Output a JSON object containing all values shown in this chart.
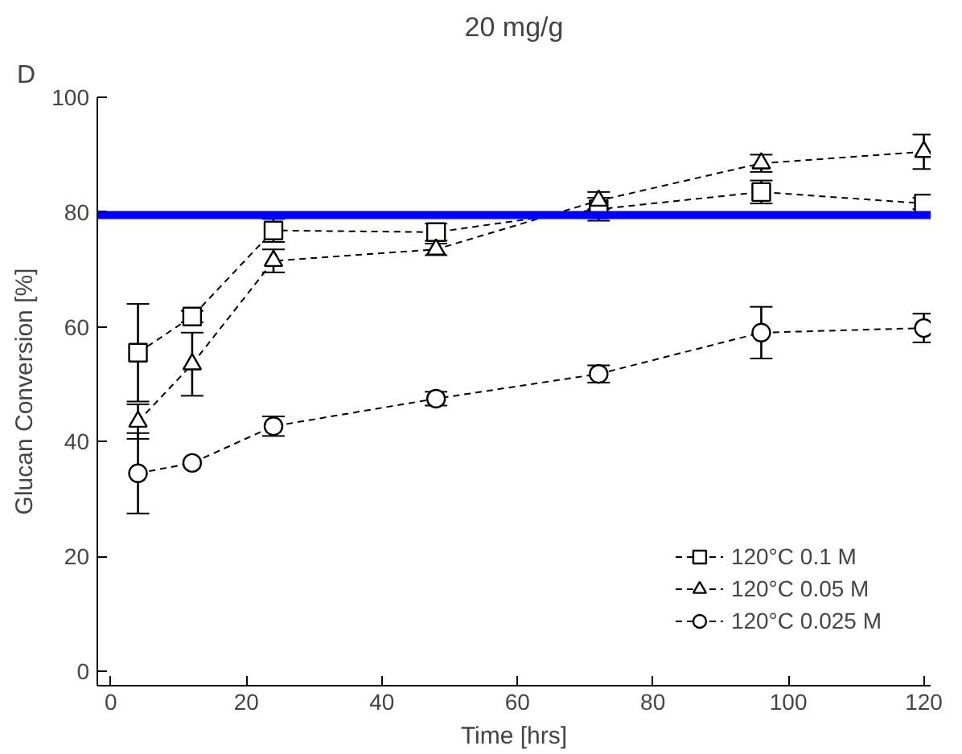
{
  "chart_data": {
    "type": "line",
    "title": "20 mg/g",
    "xlabel": "Time [hrs]",
    "ylabel": "Glucan Conversion [%]",
    "annotations": [
      "D"
    ],
    "x": [
      4,
      12,
      24,
      48,
      72,
      96,
      120
    ],
    "series": [
      {
        "name": "120°C 0.1 M",
        "color": "#000000",
        "marker": "square",
        "values": [
          55.5,
          61.8,
          76.8,
          76.5,
          80.5,
          83.5,
          81.5
        ],
        "errors": [
          8.5,
          1,
          2,
          1.5,
          2,
          2,
          1
        ]
      },
      {
        "name": "120°C 0.05 M",
        "color": "#000000",
        "marker": "triangle",
        "values": [
          43.5,
          53.5,
          71.5,
          73.5,
          82,
          88.5,
          90.5
        ],
        "errors": [
          3,
          5.5,
          2,
          1,
          1.5,
          1.5,
          3
        ]
      },
      {
        "name": "120°C 0.025 M",
        "color": "#000000",
        "marker": "circle",
        "values": [
          34.5,
          36.3,
          42.7,
          47.5,
          51.8,
          59,
          59.8
        ],
        "errors": [
          7,
          null,
          1.7,
          1.2,
          1.5,
          4.5,
          2.5
        ]
      }
    ],
    "line_style": "dashed",
    "ref_lines": [
      {
        "axis": "y",
        "value": 79.5,
        "color": "#0000ff"
      }
    ],
    "xlim": [
      -2,
      121
    ],
    "ylim": [
      -2.5,
      100
    ],
    "xticks": [
      0,
      20,
      40,
      60,
      80,
      100,
      120
    ],
    "yticks": [
      0,
      20,
      40,
      60,
      80,
      100
    ],
    "grid": false,
    "legend": "bottom right"
  }
}
